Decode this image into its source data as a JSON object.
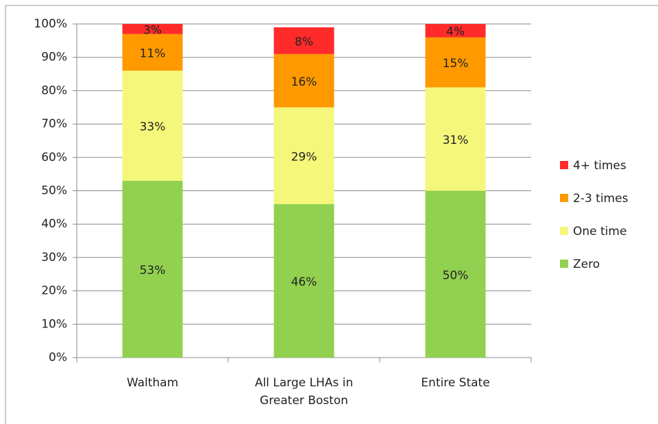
{
  "chart_data": {
    "type": "stacked_bar",
    "categories": [
      "Waltham",
      "All Large LHAs in Greater Boston",
      "Entire State"
    ],
    "series": [
      {
        "name": "Zero",
        "color": "#92d050",
        "values": [
          53,
          46,
          50
        ],
        "value_labels": [
          "53%",
          "46%",
          "50%"
        ]
      },
      {
        "name": "One time",
        "color": "#f4f77a",
        "values": [
          33,
          29,
          31
        ],
        "value_labels": [
          "33%",
          "29%",
          "31%"
        ]
      },
      {
        "name": "2-3 times",
        "color": "#ff9900",
        "values": [
          11,
          16,
          15
        ],
        "value_labels": [
          "11%",
          "16%",
          "15%"
        ]
      },
      {
        "name": "4+ times",
        "color": "#ff2a2a",
        "values": [
          3,
          8,
          4
        ],
        "value_labels": [
          "3%",
          "8%",
          "4%"
        ]
      }
    ],
    "ylim": [
      0,
      100
    ],
    "yticks": [
      {
        "value": 0,
        "label": "0%"
      },
      {
        "value": 10,
        "label": "10%"
      },
      {
        "value": 20,
        "label": "20%"
      },
      {
        "value": 30,
        "label": "30%"
      },
      {
        "value": 40,
        "label": "40%"
      },
      {
        "value": 50,
        "label": "50%"
      },
      {
        "value": 60,
        "label": "60%"
      },
      {
        "value": 70,
        "label": "70%"
      },
      {
        "value": 80,
        "label": "80%"
      },
      {
        "value": 90,
        "label": "90%"
      },
      {
        "value": 100,
        "label": "100%"
      }
    ],
    "grid": true,
    "legend": "right"
  }
}
